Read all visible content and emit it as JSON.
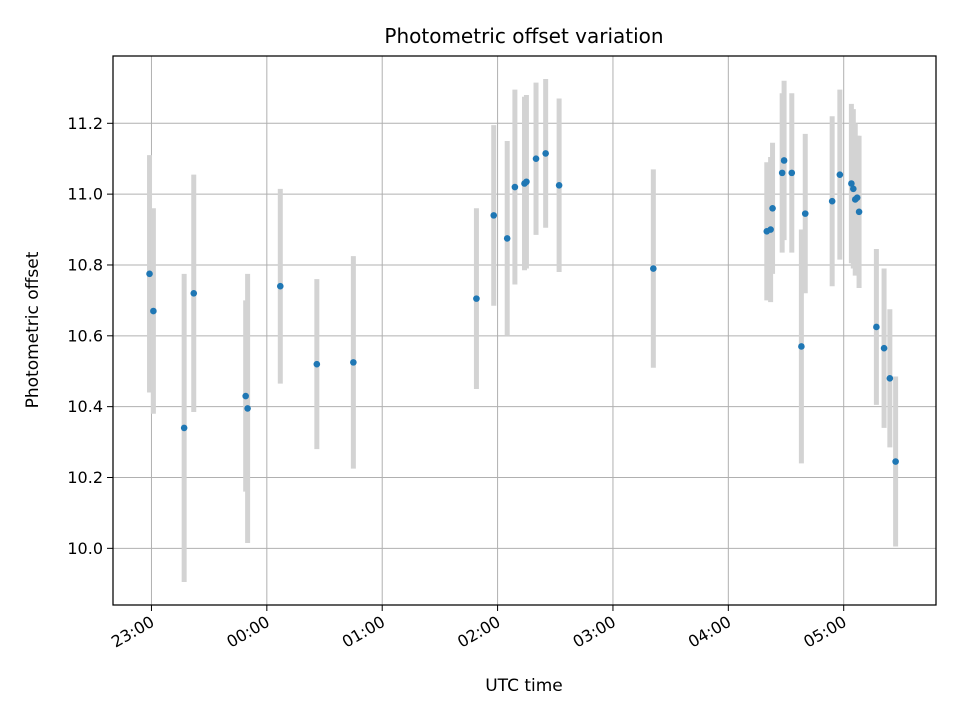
{
  "chart_data": {
    "type": "scatter",
    "title": "Photometric offset variation",
    "xlabel": "UTC time",
    "ylabel": "Photometric offset",
    "grid": true,
    "xlim": [
      "22:40",
      "05:48"
    ],
    "ylim": [
      9.84,
      11.39
    ],
    "x_ticks": [
      "23:00",
      "00:00",
      "01:00",
      "02:00",
      "03:00",
      "04:00",
      "05:00"
    ],
    "y_ticks": [
      "10.0",
      "10.2",
      "10.4",
      "10.6",
      "10.8",
      "11.0",
      "11.2"
    ],
    "colors": {
      "point": "#1f77b4",
      "errorbar": "#d3d3d3",
      "grid": "#b0b0b0"
    },
    "points": [
      {
        "x": "22:59",
        "y": 10.775,
        "err": 0.335
      },
      {
        "x": "23:01",
        "y": 10.67,
        "err": 0.29
      },
      {
        "x": "23:17",
        "y": 10.34,
        "err": 0.435
      },
      {
        "x": "23:22",
        "y": 10.72,
        "err": 0.335
      },
      {
        "x": "23:49",
        "y": 10.43,
        "err": 0.27
      },
      {
        "x": "23:50",
        "y": 10.395,
        "err": 0.38
      },
      {
        "x": "00:07",
        "y": 10.74,
        "err": 0.275
      },
      {
        "x": "00:26",
        "y": 10.52,
        "err": 0.24
      },
      {
        "x": "00:45",
        "y": 10.525,
        "err": 0.3
      },
      {
        "x": "01:49",
        "y": 10.705,
        "err": 0.255
      },
      {
        "x": "01:58",
        "y": 10.94,
        "err": 0.255
      },
      {
        "x": "02:05",
        "y": 10.875,
        "err": 0.275
      },
      {
        "x": "02:09",
        "y": 11.02,
        "err": 0.275
      },
      {
        "x": "02:14",
        "y": 11.03,
        "err": 0.245
      },
      {
        "x": "02:15",
        "y": 11.035,
        "err": 0.245
      },
      {
        "x": "02:20",
        "y": 11.1,
        "err": 0.215
      },
      {
        "x": "02:25",
        "y": 11.115,
        "err": 0.21
      },
      {
        "x": "02:32",
        "y": 11.025,
        "err": 0.245
      },
      {
        "x": "03:21",
        "y": 10.79,
        "err": 0.28
      },
      {
        "x": "04:20",
        "y": 10.895,
        "err": 0.195
      },
      {
        "x": "04:22",
        "y": 10.9,
        "err": 0.205
      },
      {
        "x": "04:23",
        "y": 10.96,
        "err": 0.185
      },
      {
        "x": "04:28",
        "y": 11.06,
        "err": 0.225
      },
      {
        "x": "04:29",
        "y": 11.095,
        "err": 0.225
      },
      {
        "x": "04:33",
        "y": 11.06,
        "err": 0.225
      },
      {
        "x": "04:38",
        "y": 10.57,
        "err": 0.33
      },
      {
        "x": "04:40",
        "y": 10.945,
        "err": 0.225
      },
      {
        "x": "04:54",
        "y": 10.98,
        "err": 0.24
      },
      {
        "x": "04:58",
        "y": 11.055,
        "err": 0.24
      },
      {
        "x": "05:04",
        "y": 11.03,
        "err": 0.225
      },
      {
        "x": "05:05",
        "y": 11.015,
        "err": 0.225
      },
      {
        "x": "05:06",
        "y": 10.985,
        "err": 0.215
      },
      {
        "x": "05:07",
        "y": 10.99,
        "err": 0.175
      },
      {
        "x": "05:08",
        "y": 10.95,
        "err": 0.215
      },
      {
        "x": "05:17",
        "y": 10.625,
        "err": 0.22
      },
      {
        "x": "05:21",
        "y": 10.565,
        "err": 0.225
      },
      {
        "x": "05:24",
        "y": 10.48,
        "err": 0.195
      },
      {
        "x": "05:27",
        "y": 10.245,
        "err": 0.24
      }
    ]
  }
}
